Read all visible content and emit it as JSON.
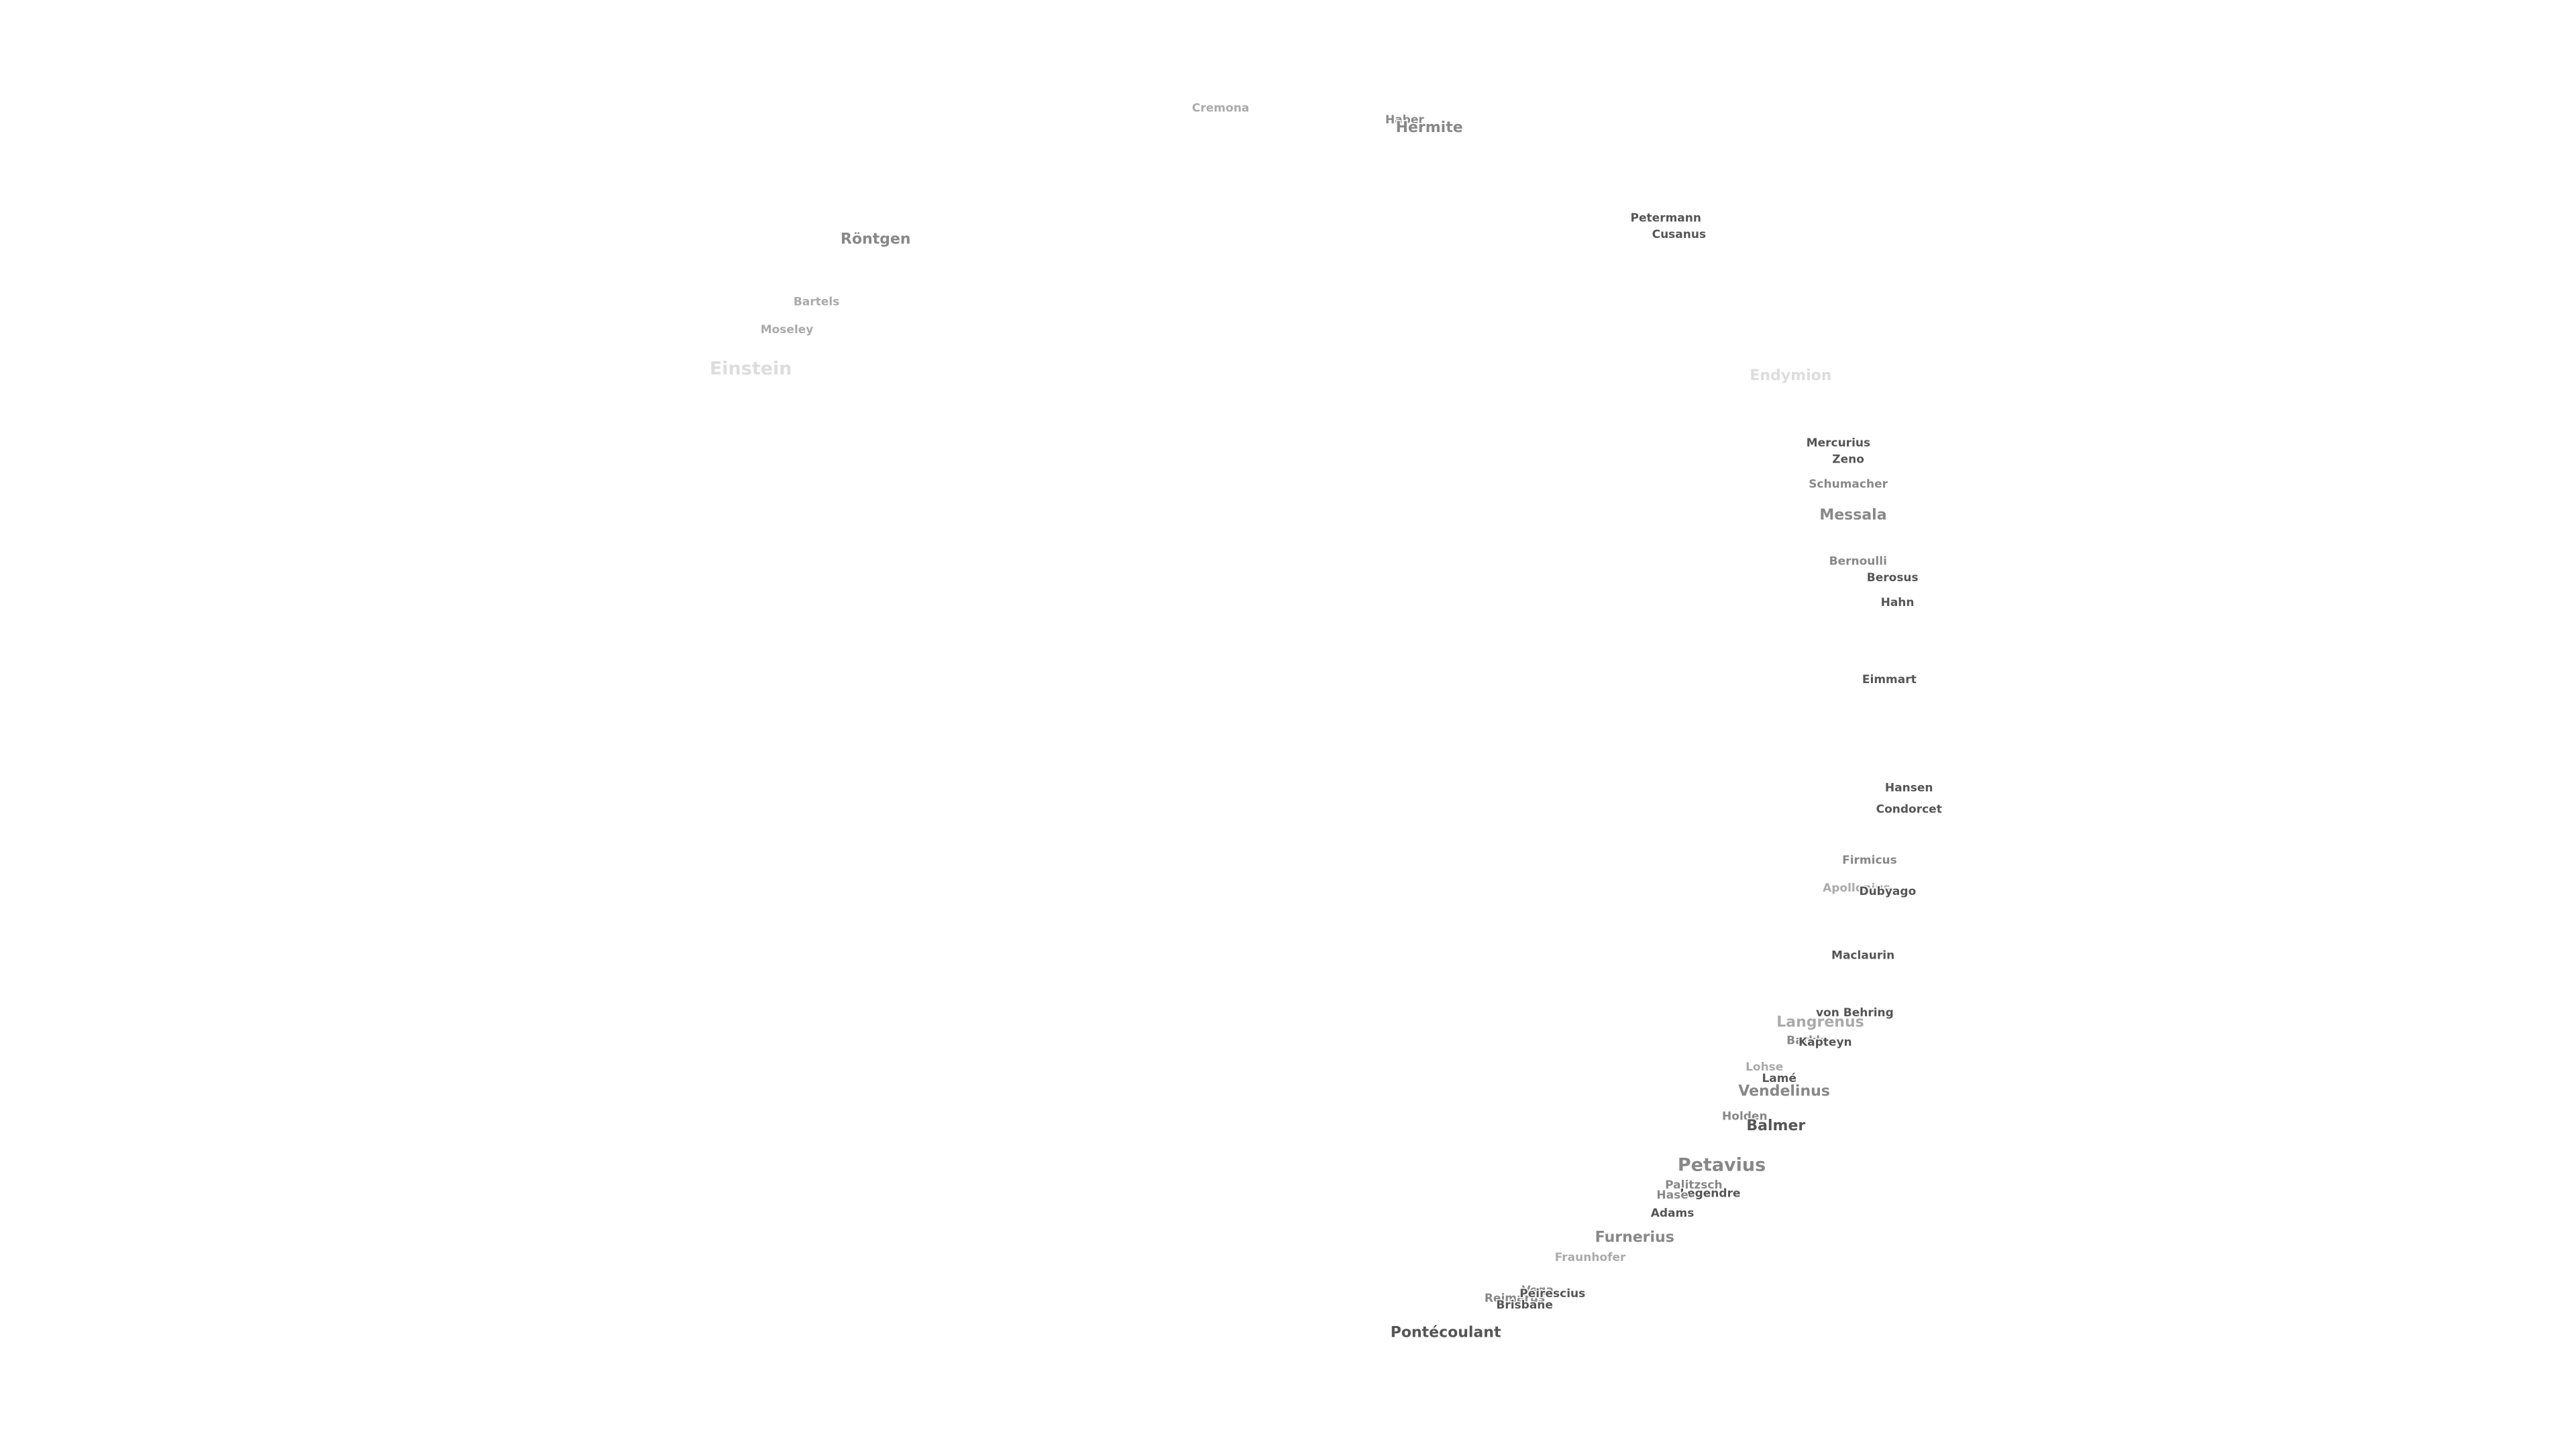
{
  "labels": [
    "Cremona",
    "Haber",
    "Hermite",
    "Petermann",
    "Cusanus",
    "Röntgen",
    "Bartels",
    "Moseley",
    "Einstein",
    "Endymion",
    "Mercurius",
    "Zeno",
    "Schumacher",
    "Messala",
    "Bernoulli",
    "Berosus",
    "Hahn",
    "Eimmart",
    "Hansen",
    "Condorcet",
    "Firmicus",
    "Apollonius",
    "Dubyago",
    "Maclaurin",
    "von Behring",
    "Langrenus",
    "Barkla",
    "Kapteyn",
    "Lohse",
    "Lamé",
    "Vendelinus",
    "Holden",
    "Balmer",
    "Petavius",
    "Palitzsch",
    "Legendre",
    "Hase",
    "Adams",
    "Furnerius",
    "Fraunhofer",
    "Vega",
    "Reimarus",
    "Peirescius",
    "Brisbane",
    "Pontécoulant"
  ]
}
